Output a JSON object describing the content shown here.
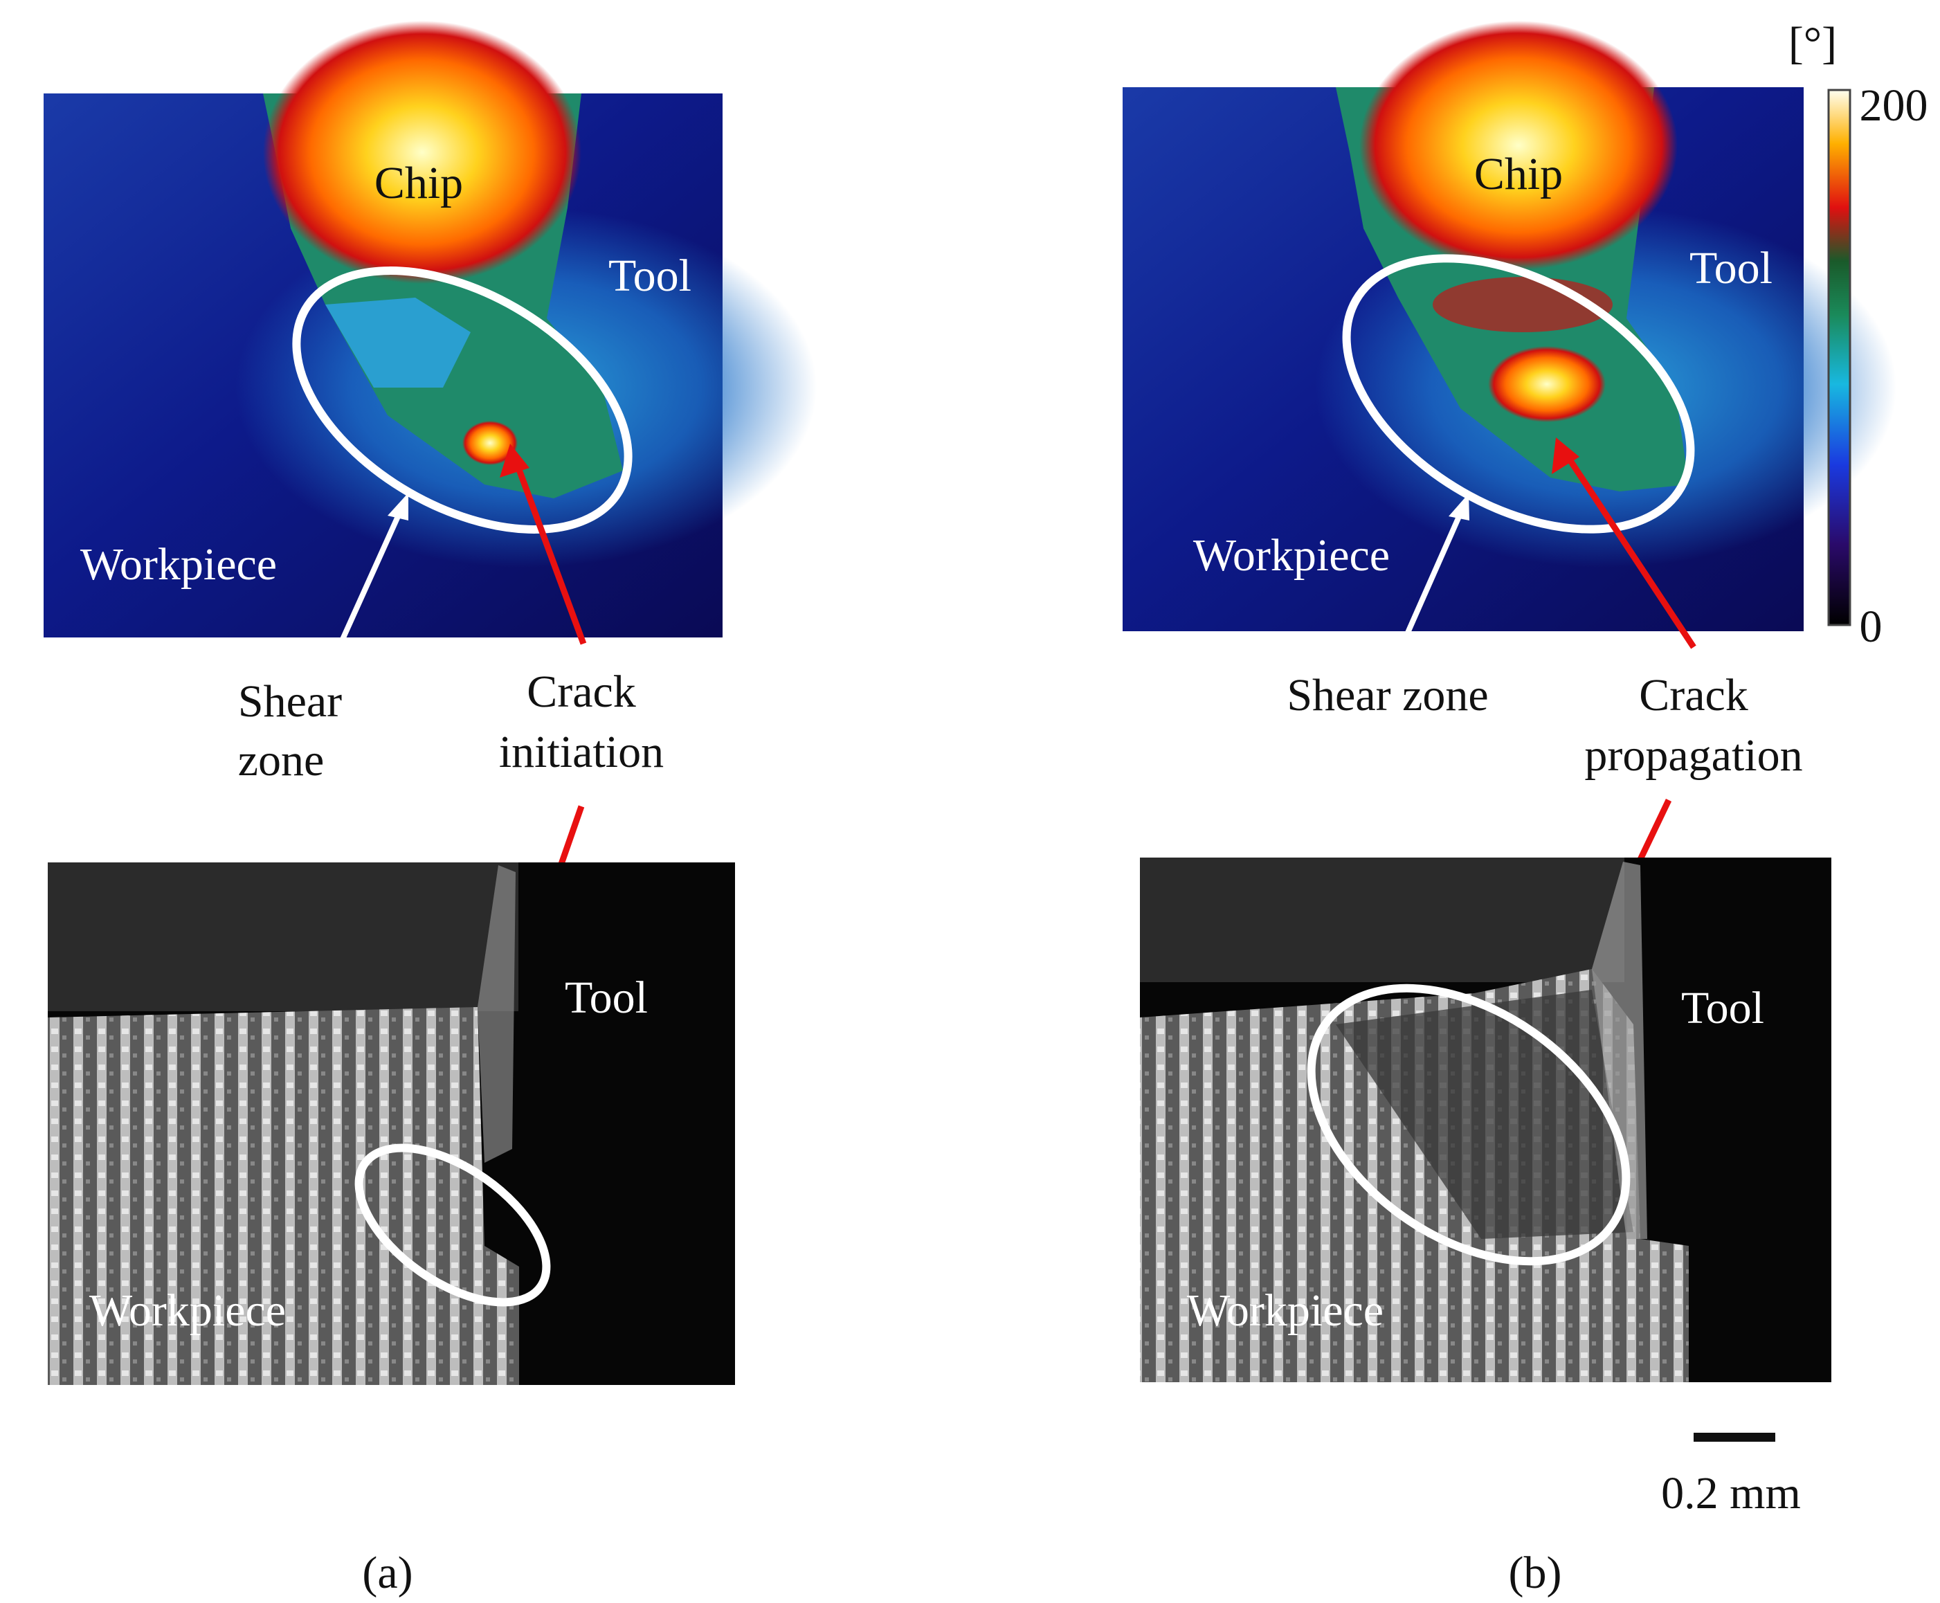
{
  "panels": [
    {
      "caption": "(a)",
      "thermal": {
        "chip": "Chip",
        "tool": "Tool",
        "workpiece": "Workpiece"
      },
      "annotations": {
        "shear": [
          "Shear",
          "zone"
        ],
        "crack": [
          "Crack",
          "initiation"
        ]
      },
      "micro": {
        "tool": "Tool",
        "workpiece": "Workpiece"
      }
    },
    {
      "caption": "(b)",
      "thermal": {
        "chip": "Chip",
        "tool": "Tool",
        "workpiece": "Workpiece"
      },
      "annotations": {
        "shear": [
          "Shear zone"
        ],
        "crack": [
          "Crack",
          "propagation"
        ]
      },
      "micro": {
        "tool": "Tool",
        "workpiece": "Workpiece"
      }
    }
  ],
  "colorbar": {
    "unit": "[°]",
    "max": 200,
    "min": 0
  },
  "scale_bar": "0.2 mm"
}
